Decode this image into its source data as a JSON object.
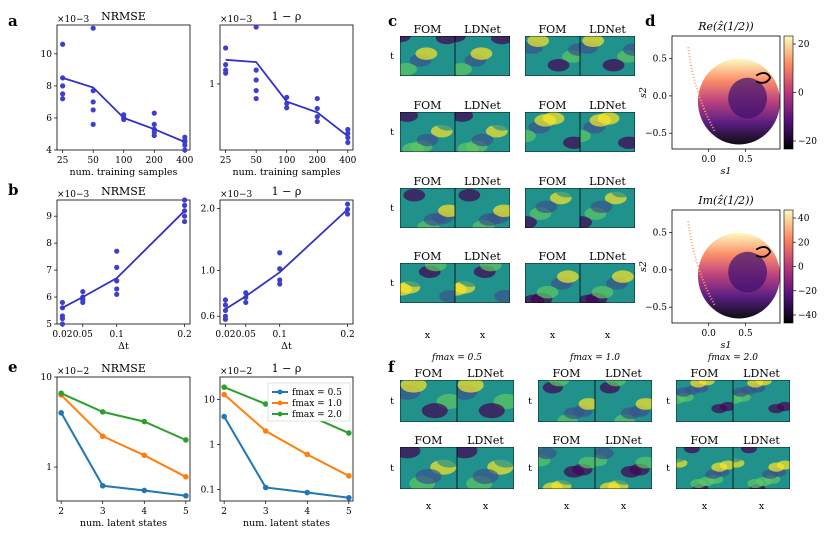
{
  "panel_letters": [
    "a",
    "b",
    "c",
    "d",
    "e",
    "f"
  ],
  "chart_data": [
    {
      "id": "a1",
      "type": "scatter",
      "title": "NRMSE",
      "exponent": "×10−3",
      "xscale": "log",
      "xlabel": "num. training samples",
      "xticks": [
        25,
        50,
        100,
        200,
        400
      ],
      "xlim": [
        22,
        450
      ],
      "ylim": [
        4,
        11.8
      ],
      "yticks": [
        4,
        6,
        8,
        10
      ],
      "points": [
        [
          25,
          10.6
        ],
        [
          25,
          8.5
        ],
        [
          25,
          8.0
        ],
        [
          25,
          7.5
        ],
        [
          25,
          7.2
        ],
        [
          50,
          11.6
        ],
        [
          50,
          7.7
        ],
        [
          50,
          7.0
        ],
        [
          50,
          6.5
        ],
        [
          50,
          5.6
        ],
        [
          100,
          6.2
        ],
        [
          100,
          6.0
        ],
        [
          100,
          5.9
        ],
        [
          200,
          6.3
        ],
        [
          200,
          5.6
        ],
        [
          200,
          5.3
        ],
        [
          200,
          5.1
        ],
        [
          200,
          4.9
        ],
        [
          400,
          4.8
        ],
        [
          400,
          4.6
        ],
        [
          400,
          4.5
        ],
        [
          400,
          4.3
        ],
        [
          400,
          4.0
        ]
      ],
      "line": [
        [
          25,
          8.5
        ],
        [
          50,
          7.9
        ],
        [
          100,
          6.0
        ],
        [
          200,
          5.3
        ],
        [
          400,
          4.5
        ]
      ]
    },
    {
      "id": "a2",
      "type": "scatter",
      "title": "1 − ρ",
      "exponent": "×10−3",
      "xscale": "log",
      "yscale": "log",
      "xlabel": "num. training samples",
      "xticks": [
        25,
        50,
        100,
        200,
        400
      ],
      "xlim": [
        22,
        450
      ],
      "ylim": [
        0.2,
        4.2
      ],
      "yticks": [
        1
      ],
      "points": [
        [
          25,
          2.4
        ],
        [
          25,
          1.6
        ],
        [
          25,
          1.4
        ],
        [
          25,
          1.3
        ],
        [
          50,
          4.0
        ],
        [
          50,
          1.4
        ],
        [
          50,
          1.1
        ],
        [
          50,
          0.85
        ],
        [
          50,
          0.7
        ],
        [
          100,
          0.72
        ],
        [
          100,
          0.62
        ],
        [
          100,
          0.56
        ],
        [
          200,
          0.7
        ],
        [
          200,
          0.55
        ],
        [
          200,
          0.45
        ],
        [
          200,
          0.4
        ],
        [
          400,
          0.33
        ],
        [
          400,
          0.3
        ],
        [
          400,
          0.27
        ],
        [
          400,
          0.24
        ]
      ],
      "line": [
        [
          25,
          1.8
        ],
        [
          50,
          1.7
        ],
        [
          100,
          0.65
        ],
        [
          200,
          0.5
        ],
        [
          400,
          0.28
        ]
      ]
    },
    {
      "id": "b1",
      "type": "scatter",
      "title": "NRMSE",
      "exponent": "×10−3",
      "xlabel": "Δt",
      "xticks": [
        0.02,
        0.05,
        0.1,
        0.2
      ],
      "xticklabels": [
        "0.02",
        "0.05",
        "0.1",
        "0.2"
      ],
      "xlim": [
        0.012,
        0.208
      ],
      "ylim": [
        5,
        9.6
      ],
      "yticks": [
        5,
        6,
        7,
        8,
        9
      ],
      "points": [
        [
          0.02,
          5.8
        ],
        [
          0.02,
          5.6
        ],
        [
          0.02,
          5.3
        ],
        [
          0.02,
          5.2
        ],
        [
          0.02,
          5.0
        ],
        [
          0.05,
          6.2
        ],
        [
          0.05,
          6.0
        ],
        [
          0.05,
          5.9
        ],
        [
          0.05,
          5.8
        ],
        [
          0.1,
          7.7
        ],
        [
          0.1,
          7.1
        ],
        [
          0.1,
          6.6
        ],
        [
          0.1,
          6.3
        ],
        [
          0.1,
          6.1
        ],
        [
          0.2,
          9.6
        ],
        [
          0.2,
          9.4
        ],
        [
          0.2,
          9.2
        ],
        [
          0.2,
          9.0
        ],
        [
          0.2,
          8.8
        ]
      ],
      "line": [
        [
          0.02,
          5.6
        ],
        [
          0.05,
          6.0
        ],
        [
          0.1,
          6.7
        ],
        [
          0.2,
          9.2
        ]
      ]
    },
    {
      "id": "b2",
      "type": "scatter",
      "title": "1 − ρ",
      "exponent": "×10−3",
      "yscale": "log",
      "xlabel": "Δt",
      "xticks": [
        0.02,
        0.05,
        0.1,
        0.2
      ],
      "xticklabels": [
        "0.02",
        "0.05",
        "0.1",
        "0.2"
      ],
      "xlim": [
        0.012,
        0.208
      ],
      "ylim": [
        0.55,
        2.2
      ],
      "yticks": [
        0.6,
        1.0,
        2.0
      ],
      "yticklabels": [
        "0.6",
        "1.0",
        "2.0"
      ],
      "points": [
        [
          0.02,
          0.72
        ],
        [
          0.02,
          0.68
        ],
        [
          0.02,
          0.64
        ],
        [
          0.02,
          0.6
        ],
        [
          0.02,
          0.58
        ],
        [
          0.05,
          0.78
        ],
        [
          0.05,
          0.74
        ],
        [
          0.05,
          0.7
        ],
        [
          0.1,
          1.22
        ],
        [
          0.1,
          1.02
        ],
        [
          0.1,
          0.9
        ],
        [
          0.1,
          0.86
        ],
        [
          0.2,
          2.1
        ],
        [
          0.2,
          1.98
        ],
        [
          0.2,
          1.88
        ]
      ],
      "line": [
        [
          0.02,
          0.65
        ],
        [
          0.05,
          0.75
        ],
        [
          0.1,
          0.98
        ],
        [
          0.2,
          1.98
        ]
      ]
    },
    {
      "id": "e1",
      "type": "line",
      "title": "NRMSE",
      "exponent": "×10−2",
      "yscale": "log",
      "xlabel": "num. latent states",
      "xticks": [
        2,
        3,
        4,
        5
      ],
      "xlim": [
        1.9,
        5.1
      ],
      "ylim": [
        0.42,
        10
      ],
      "yticks": [
        1,
        10
      ],
      "series": [
        {
          "name": "fmax = 0.5",
          "color": "#1f77b4",
          "x": [
            2,
            3,
            4,
            5
          ],
          "values": [
            4.0,
            0.62,
            0.55,
            0.48
          ]
        },
        {
          "name": "fmax = 1.0",
          "color": "#ff7f0e",
          "x": [
            2,
            3,
            4,
            5
          ],
          "values": [
            6.3,
            2.2,
            1.35,
            0.78
          ]
        },
        {
          "name": "fmax = 2.0",
          "color": "#2ca02c",
          "x": [
            2,
            3,
            4,
            5
          ],
          "values": [
            6.6,
            4.1,
            3.2,
            2.0
          ]
        }
      ]
    },
    {
      "id": "e2",
      "type": "line",
      "title": "1 − ρ",
      "exponent": "×10−2",
      "yscale": "log",
      "xlabel": "num. latent states",
      "xticks": [
        2,
        3,
        4,
        5
      ],
      "xlim": [
        1.9,
        5.1
      ],
      "ylim": [
        0.055,
        32
      ],
      "yticks": [
        0.1,
        1,
        10
      ],
      "yticklabels": [
        "0.1",
        "1",
        "10"
      ],
      "legend": [
        "fmax = 0.5",
        "fmax = 1.0",
        "fmax = 2.0"
      ],
      "series": [
        {
          "name": "fmax = 0.5",
          "color": "#1f77b4",
          "x": [
            2,
            3,
            4,
            5
          ],
          "values": [
            4.2,
            0.11,
            0.085,
            0.065
          ]
        },
        {
          "name": "fmax = 1.0",
          "color": "#ff7f0e",
          "x": [
            2,
            3,
            4,
            5
          ],
          "values": [
            13,
            2.0,
            0.6,
            0.2
          ]
        },
        {
          "name": "fmax = 2.0",
          "color": "#2ca02c",
          "x": [
            2,
            3,
            4,
            5
          ],
          "values": [
            19,
            8.0,
            4.6,
            1.8
          ]
        }
      ]
    }
  ],
  "panel_c": {
    "label_left": "FOM",
    "label_right": "LDNet",
    "ylabel": "t",
    "xlabel": "x",
    "rows": 4,
    "cols": 2
  },
  "panel_d": {
    "plots": [
      {
        "title": "Re(ẑ(1/2))",
        "colorbar_ticks": [
          "20",
          "0",
          "−20"
        ]
      },
      {
        "title": "Im(ẑ(1/2))",
        "colorbar_ticks": [
          "40",
          "20",
          "0",
          "−20",
          "−40"
        ]
      }
    ],
    "xlabel": "s1",
    "ylabel": "s2",
    "xticks": [
      "0.0",
      "0.5"
    ],
    "yticks": [
      "0.5",
      "0.0",
      "−0.5"
    ]
  },
  "panel_f": {
    "fmax_titles": [
      "fmax = 0.5",
      "fmax = 1.0",
      "fmax = 2.0"
    ],
    "label_left": "FOM",
    "label_right": "LDNet",
    "ylabel": "t",
    "xlabel": "x"
  }
}
